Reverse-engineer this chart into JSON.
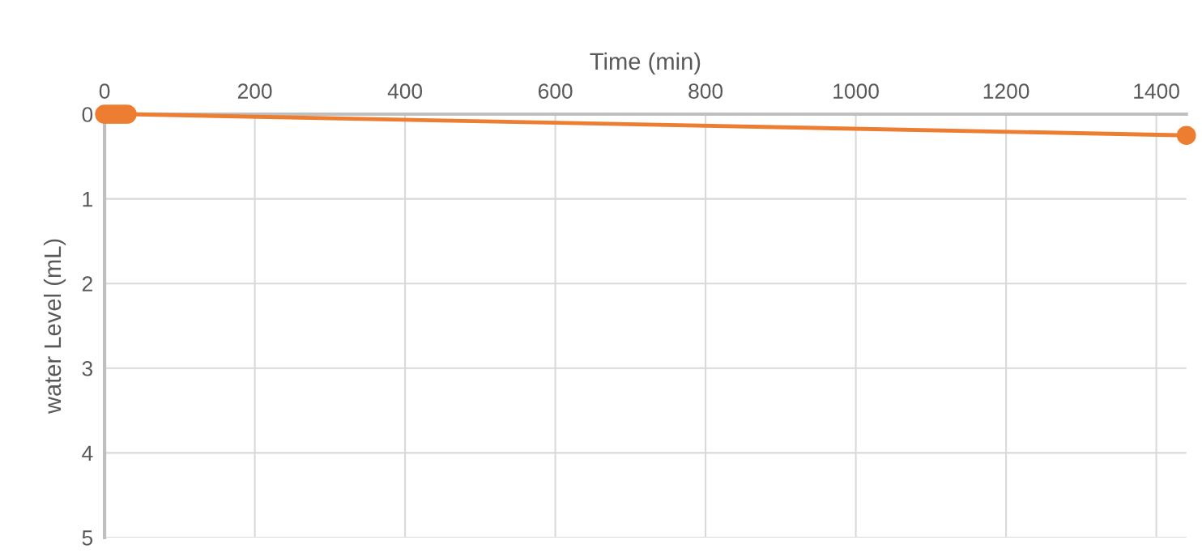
{
  "chart_data": {
    "type": "line",
    "xlabel": "Time (min)",
    "ylabel": "water Level (mL)",
    "x": [
      0,
      5,
      10,
      15,
      20,
      25,
      30,
      1440
    ],
    "series": [
      {
        "color": "#ed7d31",
        "values": [
          0,
          0,
          0,
          0,
          0,
          0,
          0,
          0.25
        ]
      }
    ],
    "xlim": [
      0,
      1440
    ],
    "xticks": [
      0,
      200,
      400,
      600,
      800,
      1000,
      1200,
      1400
    ],
    "ylim": [
      5,
      0
    ],
    "yticks": [
      0,
      1,
      2,
      3,
      4,
      5
    ],
    "grid": true,
    "marker": "circle",
    "line_style": "solid"
  }
}
